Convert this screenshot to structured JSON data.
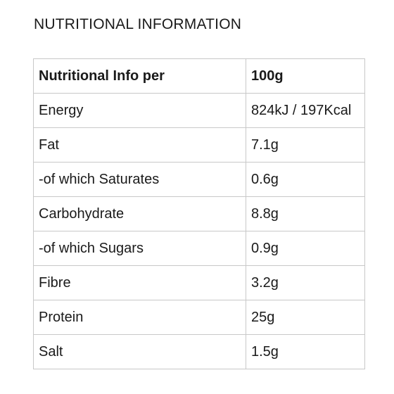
{
  "title": "NUTRITIONAL INFORMATION",
  "table": {
    "header": {
      "label": "Nutritional Info per",
      "value": "100g"
    },
    "rows": [
      {
        "label": "Energy",
        "value": "824kJ / 197Kcal"
      },
      {
        "label": "Fat",
        "value": "7.1g"
      },
      {
        "label": "-of which Saturates",
        "value": "0.6g"
      },
      {
        "label": "Carbohydrate",
        "value": "8.8g"
      },
      {
        "label": "-of which Sugars",
        "value": "0.9g"
      },
      {
        "label": "Fibre",
        "value": "3.2g"
      },
      {
        "label": "Protein",
        "value": "25g"
      },
      {
        "label": "Salt",
        "value": "1.5g"
      }
    ]
  }
}
